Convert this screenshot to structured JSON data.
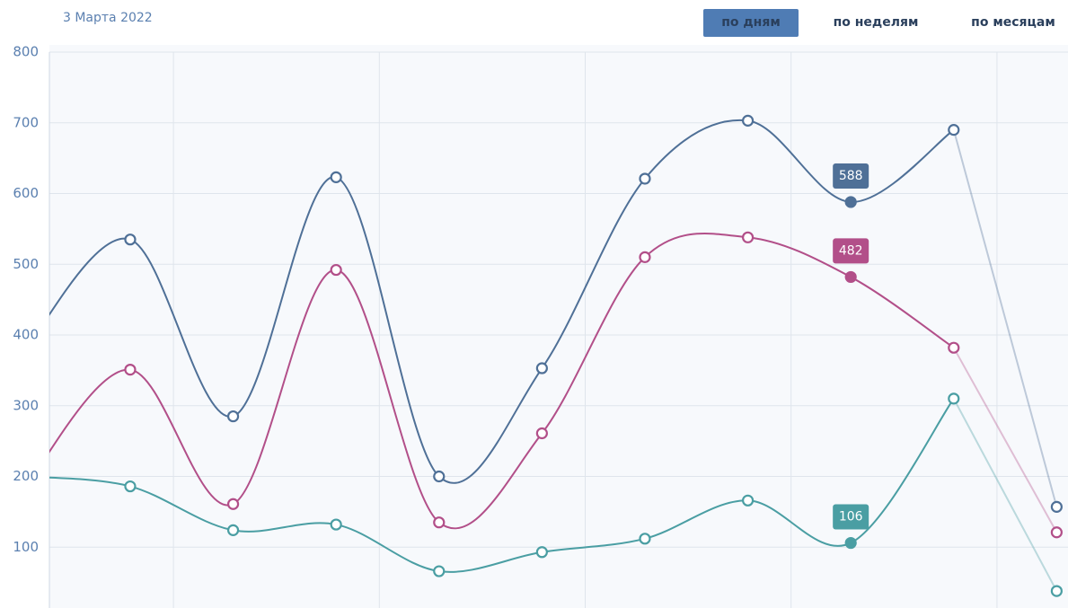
{
  "header": {
    "date": "3 Марта 2022",
    "tabs": [
      "по дням",
      "по неделям",
      "по месяцам"
    ],
    "active_tab": 0
  },
  "chart_data": {
    "type": "line",
    "x": [
      0,
      1,
      2,
      3,
      4,
      5,
      6,
      7,
      8,
      9,
      10
    ],
    "series": [
      {
        "color": "#4f7097",
        "values": [
          385,
          535,
          285,
          623,
          200,
          353,
          621,
          703,
          588,
          690,
          157
        ]
      },
      {
        "color": "#b24f89",
        "values": [
          190,
          351,
          161,
          492,
          135,
          261,
          510,
          538,
          482,
          382,
          121
        ]
      },
      {
        "color": "#4a9ea3",
        "values": [
          200,
          186,
          124,
          132,
          66,
          93,
          112,
          166,
          106,
          310,
          38
        ]
      }
    ],
    "xlim": [
      0.215,
      10.11
    ],
    "xticks": [
      1.42,
      3.42,
      5.42,
      7.42,
      9.42
    ],
    "ylim": [
      14,
      800
    ],
    "yticks": [
      100,
      200,
      300,
      400,
      500,
      600,
      700,
      800
    ],
    "grid": true,
    "selected_index": 8,
    "faded_from": 9
  }
}
